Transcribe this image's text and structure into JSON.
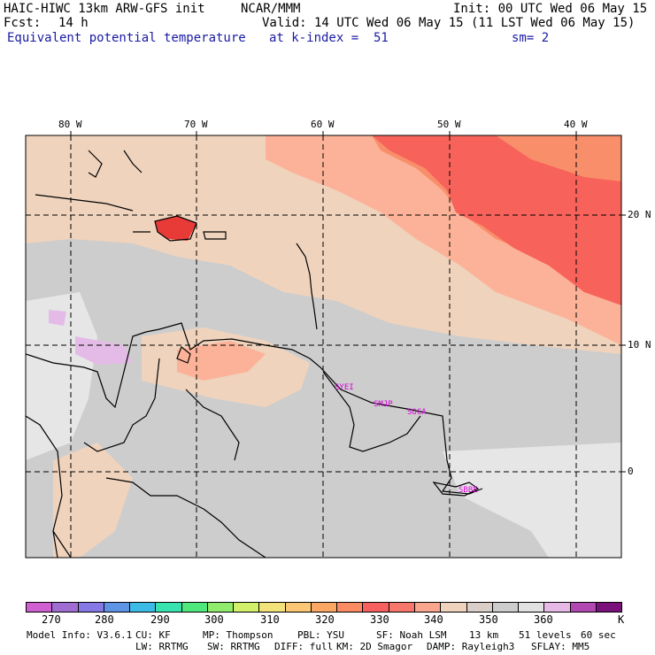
{
  "header": {
    "model_title": "HAIC-HIWC 13km ARW-GFS init",
    "org": "NCAR/MMM",
    "init": "Init: 00 UTC Wed 06 May 15",
    "fcst_label": "Fcst:",
    "fcst_value": "14 h",
    "valid": "Valid: 14 UTC Wed 06 May 15 (11 LST Wed 06 May 15)",
    "field_name": "Equivalent potential temperature",
    "level": "at k-index =  51",
    "smoothing": "sm= 2"
  },
  "map": {
    "lon_labels": [
      "80 W",
      "70 W",
      "60 W",
      "50 W",
      "40 W"
    ],
    "lat_labels": [
      "20 N",
      "10 N",
      "0"
    ],
    "stations": [
      "SYEI",
      "SMJP",
      "SOCA",
      "SBBE"
    ],
    "colors": {
      "grey": "#cdcdcd",
      "lightgrey": "#e6e6e6",
      "peach": "#efd3bd",
      "salmon": "#fbb298",
      "orange": "#f98f6a",
      "red": "#f7635a",
      "deepred": "#e83b38",
      "lavender": "#e3bbe6",
      "land_line": "#000000"
    }
  },
  "colorbar": {
    "colors": [
      "#cf60cf",
      "#a06ed3",
      "#8579e6",
      "#5f93e6",
      "#3cbbe6",
      "#38e3b0",
      "#4ee87c",
      "#8fed6b",
      "#d3f06b",
      "#f1e37a",
      "#fcc775",
      "#fca764",
      "#fb8b63",
      "#f6605e",
      "#f7786b",
      "#faa58e",
      "#efd3bd",
      "#d9cfc8",
      "#cdcdcd",
      "#e1e1e1",
      "#e7b9e6",
      "#b248b2",
      "#7a107a"
    ],
    "labels": [
      "270",
      "280",
      "290",
      "300",
      "310",
      "320",
      "330",
      "340",
      "350",
      "360",
      "K"
    ]
  },
  "footer": {
    "line1": [
      "Model Info: V3.6.1",
      "CU: KF",
      "MP: Thompson",
      "PBL: YSU",
      "SF: Noah LSM",
      "13 km",
      "51 levels",
      "60 sec"
    ],
    "line2": [
      "LW: RRTMG",
      "SW: RRTMG",
      "DIFF: full",
      "KM: 2D Smagor",
      "DAMP: Rayleigh3",
      "SFLAY: MM5"
    ]
  }
}
